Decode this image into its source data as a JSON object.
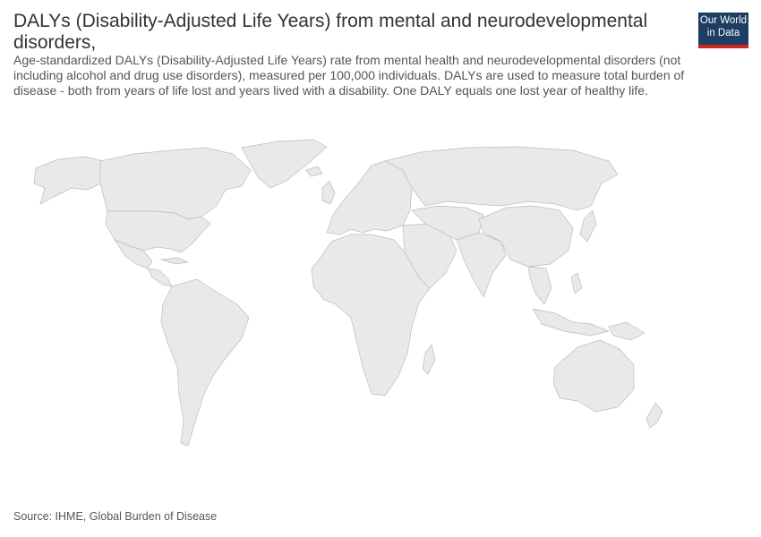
{
  "title": "DALYs (Disability-Adjusted Life Years) from mental and neurodevelopmental disorders,",
  "subtitle": "Age-standardized DALYs (Disability-Adjusted Life Years) rate from mental health and neurodevelopmental disorders (not including alcohol and drug use disorders), measured per 100,000 individuals. DALYs are used to measure total burden of disease - both from years of life lost and years lived with a disability. One DALY equals one lost year of healthy life.",
  "logo": {
    "line1": "Our World",
    "line2": "in Data"
  },
  "source": "Source: IHME, Global Burden of Disease",
  "colors": {
    "land": "#e9e9e9",
    "border": "#bdbdbd",
    "logo_bg": "#1d3d63",
    "logo_accent": "#ce261e"
  }
}
